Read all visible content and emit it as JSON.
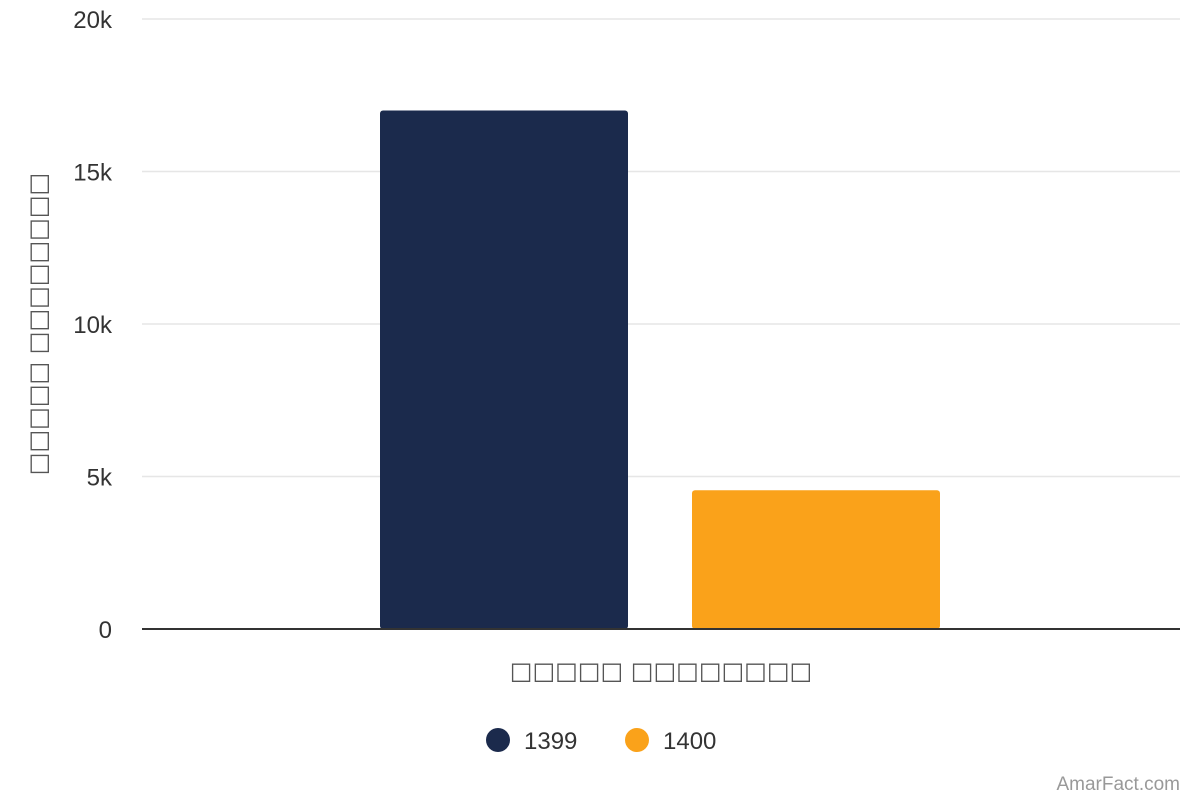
{
  "chart_data": {
    "type": "bar",
    "categories": [
      "□□□□□ □□□□□□□□"
    ],
    "series": [
      {
        "name": "1399",
        "values": [
          17000
        ],
        "color": "#1b2a4c"
      },
      {
        "name": "1400",
        "values": [
          4550
        ],
        "color": "#faa21a"
      }
    ],
    "xlabel": "□□□□□ □□□□□□□□",
    "ylabel": "□□□□□ □□□□□□□□",
    "ylim": [
      0,
      20000
    ],
    "yticks": [
      0,
      5000,
      10000,
      15000,
      20000
    ],
    "ytick_labels": [
      "0",
      "5k",
      "10k",
      "15k",
      "20k"
    ],
    "grid": true,
    "legend_position": "bottom-center"
  },
  "credit": "AmarFact.com",
  "colors": {
    "grid": "#e6e6e6",
    "axis": "#333333"
  }
}
